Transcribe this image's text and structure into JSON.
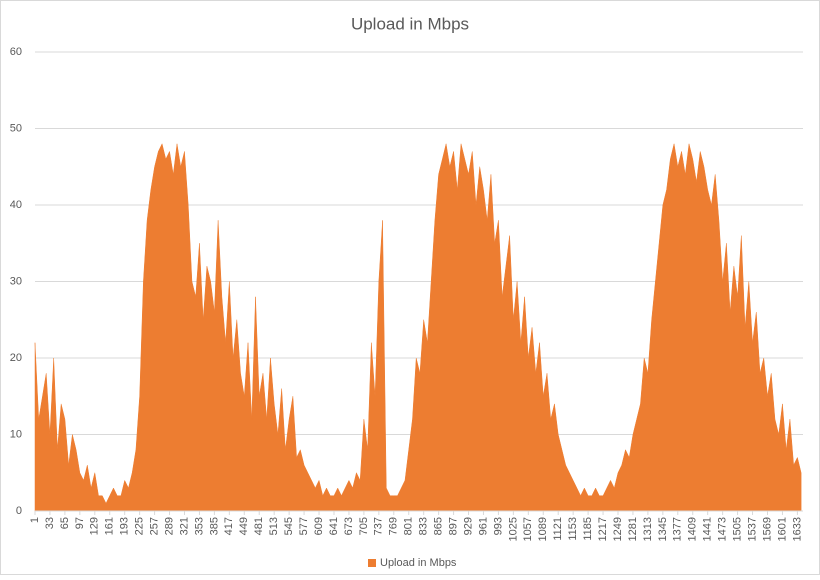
{
  "chart_data": {
    "type": "area",
    "title": "Upload in Mbps",
    "x": [
      1,
      9,
      17,
      25,
      33,
      41,
      49,
      57,
      65,
      73,
      81,
      89,
      97,
      105,
      113,
      121,
      129,
      137,
      145,
      153,
      161,
      169,
      177,
      185,
      193,
      201,
      209,
      217,
      225,
      233,
      241,
      249,
      257,
      265,
      273,
      281,
      289,
      297,
      305,
      313,
      321,
      329,
      337,
      345,
      353,
      361,
      369,
      377,
      385,
      393,
      401,
      409,
      417,
      425,
      433,
      441,
      449,
      457,
      465,
      473,
      481,
      489,
      497,
      505,
      513,
      521,
      529,
      537,
      545,
      553,
      561,
      569,
      577,
      585,
      593,
      601,
      609,
      617,
      625,
      633,
      641,
      649,
      657,
      665,
      673,
      681,
      689,
      697,
      705,
      713,
      721,
      729,
      737,
      745,
      753,
      761,
      769,
      777,
      785,
      793,
      801,
      809,
      817,
      825,
      833,
      841,
      849,
      857,
      865,
      873,
      881,
      889,
      897,
      905,
      913,
      921,
      929,
      937,
      945,
      953,
      961,
      969,
      977,
      985,
      993,
      1001,
      1009,
      1017,
      1025,
      1033,
      1041,
      1049,
      1057,
      1065,
      1073,
      1081,
      1089,
      1097,
      1105,
      1113,
      1121,
      1129,
      1137,
      1145,
      1153,
      1161,
      1169,
      1177,
      1185,
      1193,
      1201,
      1209,
      1217,
      1225,
      1233,
      1241,
      1249,
      1257,
      1265,
      1273,
      1281,
      1289,
      1297,
      1305,
      1313,
      1321,
      1329,
      1337,
      1345,
      1353,
      1361,
      1369,
      1377,
      1385,
      1393,
      1401,
      1409,
      1417,
      1425,
      1433,
      1441,
      1449,
      1457,
      1465,
      1473,
      1481,
      1489,
      1497,
      1505,
      1513,
      1521,
      1529,
      1537,
      1545,
      1553,
      1561,
      1569,
      1577,
      1585,
      1593,
      1601,
      1609,
      1617,
      1625,
      1633,
      1641
    ],
    "series": [
      {
        "name": "Upload in Mbps",
        "color": "#ed7d31",
        "values": [
          22,
          12,
          15,
          18,
          10,
          20,
          8,
          14,
          12,
          6,
          10,
          8,
          5,
          4,
          6,
          3,
          5,
          2,
          2,
          1,
          2,
          3,
          2,
          2,
          4,
          3,
          5,
          8,
          15,
          30,
          38,
          42,
          45,
          47,
          48,
          46,
          47,
          44,
          48,
          45,
          47,
          40,
          30,
          28,
          35,
          25,
          32,
          30,
          26,
          38,
          28,
          22,
          30,
          20,
          25,
          18,
          15,
          22,
          12,
          28,
          15,
          18,
          12,
          20,
          14,
          10,
          16,
          8,
          12,
          15,
          7,
          8,
          6,
          5,
          4,
          3,
          4,
          2,
          3,
          2,
          2,
          3,
          2,
          3,
          4,
          3,
          5,
          4,
          12,
          8,
          22,
          15,
          30,
          38,
          3,
          2,
          2,
          2,
          3,
          4,
          8,
          12,
          20,
          18,
          25,
          22,
          30,
          38,
          44,
          46,
          48,
          45,
          47,
          42,
          48,
          46,
          44,
          47,
          40,
          45,
          42,
          38,
          44,
          35,
          38,
          28,
          32,
          36,
          25,
          30,
          22,
          28,
          20,
          24,
          18,
          22,
          15,
          18,
          12,
          14,
          10,
          8,
          6,
          5,
          4,
          3,
          2,
          3,
          2,
          2,
          3,
          2,
          2,
          3,
          4,
          3,
          5,
          6,
          8,
          7,
          10,
          12,
          14,
          20,
          18,
          25,
          30,
          35,
          40,
          42,
          46,
          48,
          45,
          47,
          44,
          48,
          46,
          43,
          47,
          45,
          42,
          40,
          44,
          38,
          30,
          35,
          26,
          32,
          28,
          36,
          24,
          30,
          22,
          26,
          18,
          20,
          15,
          18,
          12,
          10,
          14,
          8,
          12,
          6,
          7,
          5
        ]
      }
    ],
    "xlim": [
      1,
      1645
    ],
    "xticks": [
      1,
      33,
      65,
      97,
      129,
      161,
      193,
      225,
      257,
      289,
      321,
      353,
      385,
      417,
      449,
      481,
      513,
      545,
      577,
      609,
      641,
      673,
      705,
      737,
      769,
      801,
      833,
      865,
      897,
      929,
      961,
      993,
      1025,
      1057,
      1089,
      1121,
      1153,
      1185,
      1217,
      1249,
      1281,
      1313,
      1345,
      1377,
      1409,
      1441,
      1473,
      1505,
      1537,
      1569,
      1601,
      1633
    ],
    "ylim": [
      0,
      60
    ],
    "yticks": [
      0,
      10,
      20,
      30,
      40,
      50,
      60
    ],
    "grid": true,
    "legend": "bottom"
  }
}
